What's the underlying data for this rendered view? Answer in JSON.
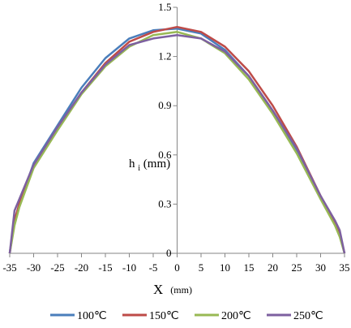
{
  "chart_data": {
    "type": "line",
    "title": "",
    "xlabel_main": "X",
    "xlabel_unit": "(mm)",
    "ylabel_main": "h",
    "ylabel_sub": "i",
    "ylabel_unit": "(mm)",
    "xlim": [
      -35,
      35
    ],
    "ylim": [
      0,
      1.5
    ],
    "xticks": [
      "-35",
      "-30",
      "-25",
      "-20",
      "-15",
      "-10",
      "-5",
      "0",
      "5",
      "10",
      "15",
      "20",
      "25",
      "30",
      "35"
    ],
    "yticks": [
      "0",
      "0.3",
      "0.6",
      "0.9",
      "1.2",
      "1.5"
    ],
    "grid": false,
    "legend_position": "bottom",
    "x": [
      -35,
      -34,
      -33,
      -30,
      -25,
      -20,
      -15,
      -10,
      -5,
      0,
      5,
      10,
      15,
      20,
      25,
      30,
      33,
      34,
      35
    ],
    "series": [
      {
        "name": "100℃",
        "color": "#4a7ebb",
        "values": [
          0,
          0.2,
          0.3,
          0.55,
          0.78,
          1.01,
          1.19,
          1.31,
          1.36,
          1.37,
          1.34,
          1.24,
          1.08,
          0.87,
          0.63,
          0.34,
          0.18,
          0.12,
          0
        ]
      },
      {
        "name": "150℃",
        "color": "#be4b48",
        "values": [
          0,
          0.2,
          0.3,
          0.53,
          0.76,
          0.98,
          1.16,
          1.29,
          1.35,
          1.38,
          1.35,
          1.26,
          1.11,
          0.9,
          0.65,
          0.35,
          0.19,
          0.12,
          0
        ]
      },
      {
        "name": "200℃",
        "color": "#98b954",
        "values": [
          0,
          0.17,
          0.28,
          0.52,
          0.75,
          0.97,
          1.14,
          1.26,
          1.33,
          1.35,
          1.31,
          1.22,
          1.06,
          0.85,
          0.61,
          0.33,
          0.17,
          0.1,
          0
        ]
      },
      {
        "name": "250℃",
        "color": "#7d60a0",
        "values": [
          0,
          0.26,
          0.33,
          0.54,
          0.77,
          0.98,
          1.15,
          1.27,
          1.31,
          1.33,
          1.31,
          1.23,
          1.08,
          0.87,
          0.64,
          0.35,
          0.2,
          0.14,
          0
        ]
      }
    ]
  }
}
